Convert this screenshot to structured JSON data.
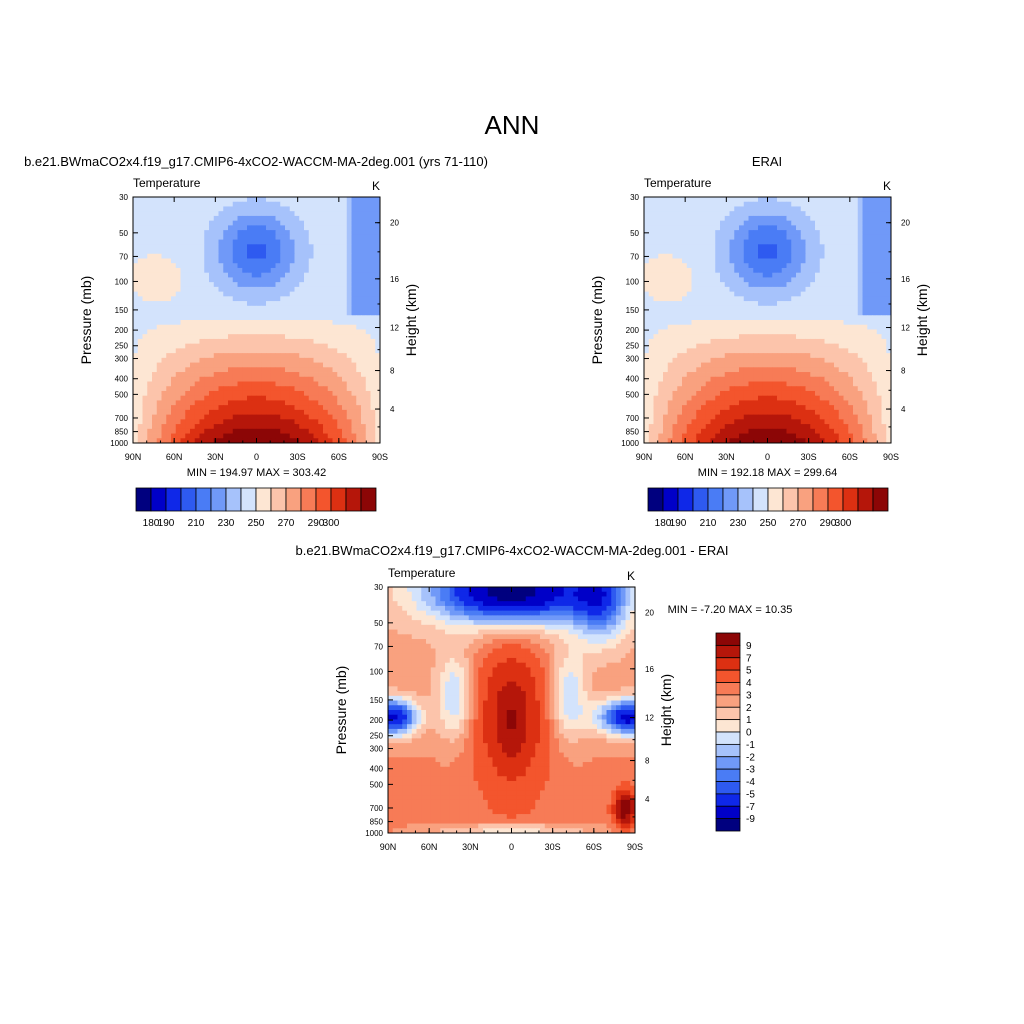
{
  "title": "ANN",
  "chart_data": [
    {
      "type": "heatmap",
      "title": "b.e21.BWmaCO2x4.f19_g17.CMIP6-4xCO2-WACCM-MA-2deg.001 (yrs 71-110)",
      "left_label": "Temperature",
      "right_label": "K",
      "xlabel": "",
      "ylabel": "Pressure (mb)",
      "y2label": "Height (km)",
      "x_ticks": [
        "90N",
        "60N",
        "30N",
        "0",
        "30S",
        "60S",
        "90S"
      ],
      "y_ticks": [
        30,
        50,
        70,
        100,
        150,
        200,
        250,
        300,
        400,
        500,
        700,
        850,
        1000
      ],
      "y_scale": "log",
      "ylim": [
        1000,
        30
      ],
      "y2_ticks": [
        4,
        8,
        12,
        16,
        20
      ],
      "stats": "MIN = 194.97  MAX = 303.42",
      "min": 194.97,
      "max": 303.42,
      "colorbar": {
        "orientation": "horizontal",
        "labels": [
          "180",
          "190",
          "210",
          "230",
          "250",
          "270",
          "290",
          "300"
        ],
        "colors": [
          "#00007f",
          "#0000c8",
          "#0f28e8",
          "#2e5af0",
          "#4a7cf5",
          "#7099f8",
          "#a6c2fb",
          "#d3e3fc",
          "#fde6d3",
          "#fcc4ab",
          "#f9a17f",
          "#f77b56",
          "#f3552d",
          "#dc3012",
          "#b5160a",
          "#8c0606"
        ]
      }
    },
    {
      "type": "heatmap",
      "title": "ERAI",
      "left_label": "Temperature",
      "right_label": "K",
      "xlabel": "",
      "ylabel": "Pressure (mb)",
      "y2label": "Height (km)",
      "x_ticks": [
        "90N",
        "60N",
        "30N",
        "0",
        "30S",
        "60S",
        "90S"
      ],
      "y_ticks": [
        30,
        50,
        70,
        100,
        150,
        200,
        250,
        300,
        400,
        500,
        700,
        850,
        1000
      ],
      "y_scale": "log",
      "ylim": [
        1000,
        30
      ],
      "y2_ticks": [
        4,
        8,
        12,
        16,
        20
      ],
      "stats": "MIN = 192.18  MAX = 299.64",
      "min": 192.18,
      "max": 299.64,
      "colorbar": {
        "orientation": "horizontal",
        "labels": [
          "180",
          "190",
          "210",
          "230",
          "250",
          "270",
          "290",
          "300"
        ],
        "colors": [
          "#00007f",
          "#0000c8",
          "#0f28e8",
          "#2e5af0",
          "#4a7cf5",
          "#7099f8",
          "#a6c2fb",
          "#d3e3fc",
          "#fde6d3",
          "#fcc4ab",
          "#f9a17f",
          "#f77b56",
          "#f3552d",
          "#dc3012",
          "#b5160a",
          "#8c0606"
        ]
      }
    },
    {
      "type": "heatmap",
      "title": "b.e21.BWmaCO2x4.f19_g17.CMIP6-4xCO2-WACCM-MA-2deg.001 - ERAI",
      "left_label": "Temperature",
      "right_label": "K",
      "xlabel": "",
      "ylabel": "Pressure (mb)",
      "y2label": "Height (km)",
      "x_ticks": [
        "90N",
        "60N",
        "30N",
        "0",
        "30S",
        "60S",
        "90S"
      ],
      "y_ticks": [
        30,
        50,
        70,
        100,
        150,
        200,
        250,
        300,
        400,
        500,
        700,
        850,
        1000
      ],
      "y_scale": "log",
      "ylim": [
        1000,
        30
      ],
      "y2_ticks": [
        4,
        8,
        12,
        16,
        20
      ],
      "stats": "MIN =  -7.20  MAX =  10.35",
      "min": -7.2,
      "max": 10.35,
      "colorbar": {
        "orientation": "vertical",
        "labels": [
          "9",
          "7",
          "5",
          "4",
          "3",
          "2",
          "1",
          "0",
          "-1",
          "-2",
          "-3",
          "-4",
          "-5",
          "-7",
          "-9"
        ],
        "colors": [
          "#8c0606",
          "#b5160a",
          "#dc3012",
          "#f3552d",
          "#f77b56",
          "#f9a17f",
          "#fcc4ab",
          "#fde6d3",
          "#d3e3fc",
          "#a6c2fb",
          "#7099f8",
          "#4a7cf5",
          "#2e5af0",
          "#0f28e8",
          "#0000c8",
          "#00007f"
        ]
      }
    }
  ]
}
